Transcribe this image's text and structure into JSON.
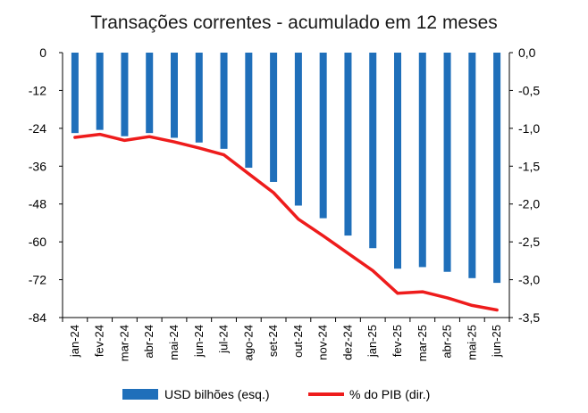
{
  "chart_data": {
    "type": "bar+line",
    "title": "Transações correntes - acumulado em 12 meses",
    "categories": [
      "jan-24",
      "fev-24",
      "mar-24",
      "abr-24",
      "mai-24",
      "jun-24",
      "jul-24",
      "ago-24",
      "set-24",
      "out-24",
      "nov-24",
      "dez-24",
      "jan-25",
      "fev-25",
      "mar-25",
      "abr-25",
      "mai-25",
      "jun-25"
    ],
    "series": [
      {
        "name": "USD bilhões (esq.)",
        "type": "bar",
        "axis": "left",
        "color": "#1f6fba",
        "values": [
          -25.5,
          -24.5,
          -26.5,
          -25.5,
          -27,
          -28.5,
          -30.5,
          -36.5,
          -41,
          -48.5,
          -52.5,
          -58,
          -62,
          -68.5,
          -68,
          -69.5,
          -71.5,
          -73
        ]
      },
      {
        "name": "% do PIB (dir.)",
        "type": "line",
        "axis": "right",
        "color": "#ee1c1c",
        "values": [
          -1.12,
          -1.08,
          -1.16,
          -1.11,
          -1.18,
          -1.26,
          -1.35,
          -1.6,
          -1.85,
          -2.2,
          -2.42,
          -2.65,
          -2.88,
          -3.18,
          -3.16,
          -3.24,
          -3.34,
          -3.4
        ]
      }
    ],
    "y_left": {
      "min": -84,
      "max": 0,
      "ticks": [
        "0",
        "-12",
        "-24",
        "-36",
        "-48",
        "-60",
        "-72",
        "-84"
      ]
    },
    "y_right": {
      "min": -3.5,
      "max": 0,
      "ticks": [
        "0,0",
        "-0,5",
        "-1,0",
        "-1,5",
        "-2,0",
        "-2,5",
        "-3,0",
        "-3,5"
      ]
    },
    "grid": false,
    "legend": "bottom"
  }
}
